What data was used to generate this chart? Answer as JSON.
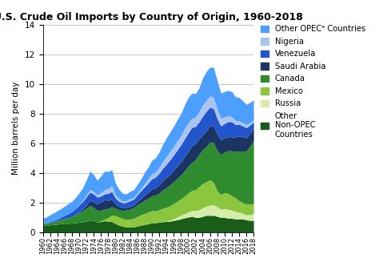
{
  "title": "U.S. Crude Oil Imports by Country of Origin, 1960-2018",
  "ylabel": "Million barrels per day",
  "years": [
    1960,
    1961,
    1962,
    1963,
    1964,
    1965,
    1966,
    1967,
    1968,
    1969,
    1970,
    1971,
    1972,
    1973,
    1974,
    1975,
    1976,
    1977,
    1978,
    1979,
    1980,
    1981,
    1982,
    1983,
    1984,
    1985,
    1986,
    1987,
    1988,
    1989,
    1990,
    1991,
    1992,
    1993,
    1994,
    1995,
    1996,
    1997,
    1998,
    1999,
    2000,
    2001,
    2002,
    2003,
    2004,
    2005,
    2006,
    2007,
    2008,
    2009,
    2010,
    2011,
    2012,
    2013,
    2014,
    2015,
    2016,
    2017,
    2018
  ],
  "series": {
    "Other Non-OPEC Countries": [
      0.45,
      0.45,
      0.48,
      0.5,
      0.52,
      0.55,
      0.58,
      0.58,
      0.6,
      0.62,
      0.65,
      0.68,
      0.72,
      0.8,
      0.75,
      0.65,
      0.7,
      0.75,
      0.72,
      0.7,
      0.55,
      0.45,
      0.38,
      0.34,
      0.34,
      0.34,
      0.4,
      0.45,
      0.5,
      0.55,
      0.62,
      0.62,
      0.65,
      0.68,
      0.72,
      0.72,
      0.78,
      0.82,
      0.88,
      0.95,
      1.0,
      1.05,
      0.98,
      0.98,
      1.05,
      1.12,
      1.12,
      1.12,
      1.05,
      0.98,
      0.98,
      0.92,
      0.92,
      0.88,
      0.88,
      0.88,
      0.82,
      0.78,
      0.78
    ],
    "Russia": [
      0.0,
      0.0,
      0.0,
      0.0,
      0.0,
      0.0,
      0.0,
      0.0,
      0.0,
      0.0,
      0.0,
      0.0,
      0.0,
      0.0,
      0.0,
      0.0,
      0.0,
      0.0,
      0.0,
      0.0,
      0.0,
      0.0,
      0.0,
      0.0,
      0.0,
      0.0,
      0.0,
      0.0,
      0.0,
      0.0,
      0.0,
      0.0,
      0.0,
      0.0,
      0.03,
      0.06,
      0.12,
      0.18,
      0.24,
      0.28,
      0.34,
      0.4,
      0.46,
      0.52,
      0.58,
      0.62,
      0.68,
      0.72,
      0.65,
      0.55,
      0.6,
      0.6,
      0.55,
      0.5,
      0.45,
      0.38,
      0.33,
      0.38,
      0.45
    ],
    "Mexico": [
      0.0,
      0.0,
      0.0,
      0.0,
      0.0,
      0.0,
      0.0,
      0.0,
      0.0,
      0.0,
      0.0,
      0.0,
      0.0,
      0.0,
      0.0,
      0.0,
      0.05,
      0.12,
      0.25,
      0.45,
      0.55,
      0.55,
      0.52,
      0.52,
      0.52,
      0.58,
      0.65,
      0.7,
      0.75,
      0.78,
      0.82,
      0.8,
      0.85,
      0.92,
      0.92,
      0.98,
      1.02,
      1.08,
      1.12,
      1.18,
      1.28,
      1.35,
      1.4,
      1.55,
      1.65,
      1.65,
      1.72,
      1.5,
      1.08,
      0.98,
      1.08,
      1.08,
      0.98,
      0.92,
      0.78,
      0.72,
      0.72,
      0.72,
      0.68
    ],
    "Canada": [
      0.12,
      0.14,
      0.16,
      0.18,
      0.22,
      0.28,
      0.32,
      0.38,
      0.44,
      0.55,
      0.65,
      0.76,
      0.88,
      0.98,
      0.88,
      0.78,
      0.72,
      0.68,
      0.62,
      0.55,
      0.5,
      0.5,
      0.55,
      0.62,
      0.68,
      0.72,
      0.78,
      0.82,
      0.88,
      0.95,
      1.0,
      1.05,
      1.12,
      1.22,
      1.32,
      1.42,
      1.48,
      1.55,
      1.6,
      1.72,
      1.8,
      1.9,
      2.02,
      2.18,
      2.28,
      2.38,
      2.55,
      2.68,
      2.72,
      2.72,
      2.72,
      2.88,
      3.02,
      3.15,
      3.35,
      3.48,
      3.58,
      3.9,
      4.22
    ],
    "Saudi Arabia": [
      0.0,
      0.0,
      0.0,
      0.0,
      0.0,
      0.0,
      0.0,
      0.0,
      0.0,
      0.0,
      0.06,
      0.12,
      0.22,
      0.34,
      0.4,
      0.46,
      0.55,
      0.62,
      0.55,
      0.5,
      0.28,
      0.22,
      0.17,
      0.17,
      0.17,
      0.17,
      0.22,
      0.28,
      0.34,
      0.4,
      0.46,
      0.5,
      0.55,
      0.62,
      0.68,
      0.72,
      0.78,
      0.82,
      0.88,
      0.95,
      1.0,
      1.1,
      1.1,
      1.05,
      1.0,
      1.05,
      1.1,
      1.1,
      1.1,
      1.0,
      0.95,
      0.95,
      0.95,
      0.95,
      1.0,
      0.95,
      0.9,
      0.85,
      0.85
    ],
    "Venezuela": [
      0.0,
      0.02,
      0.06,
      0.09,
      0.12,
      0.17,
      0.22,
      0.27,
      0.34,
      0.4,
      0.46,
      0.5,
      0.56,
      0.57,
      0.52,
      0.46,
      0.4,
      0.4,
      0.46,
      0.52,
      0.4,
      0.35,
      0.34,
      0.34,
      0.4,
      0.4,
      0.46,
      0.52,
      0.57,
      0.62,
      0.68,
      0.72,
      0.78,
      0.85,
      0.9,
      0.96,
      1.02,
      1.08,
      1.15,
      1.2,
      1.25,
      1.25,
      1.15,
      1.15,
      1.25,
      1.32,
      1.25,
      1.2,
      1.05,
      0.92,
      0.98,
      1.02,
      1.02,
      0.85,
      0.8,
      0.75,
      0.68,
      0.58,
      0.45
    ],
    "Nigeria": [
      0.0,
      0.0,
      0.0,
      0.0,
      0.0,
      0.0,
      0.0,
      0.0,
      0.0,
      0.0,
      0.02,
      0.06,
      0.12,
      0.17,
      0.17,
      0.17,
      0.22,
      0.28,
      0.34,
      0.4,
      0.22,
      0.17,
      0.12,
      0.12,
      0.12,
      0.12,
      0.12,
      0.17,
      0.22,
      0.28,
      0.34,
      0.34,
      0.4,
      0.46,
      0.52,
      0.57,
      0.57,
      0.62,
      0.62,
      0.68,
      0.68,
      0.62,
      0.62,
      0.68,
      0.75,
      0.75,
      0.75,
      0.75,
      0.62,
      0.52,
      0.46,
      0.4,
      0.34,
      0.28,
      0.22,
      0.22,
      0.22,
      0.17,
      0.12
    ],
    "Other OPEC Countries": [
      0.34,
      0.4,
      0.46,
      0.52,
      0.57,
      0.57,
      0.62,
      0.68,
      0.68,
      0.75,
      0.8,
      0.86,
      1.02,
      1.25,
      1.14,
      0.97,
      1.14,
      1.25,
      1.14,
      1.08,
      0.8,
      0.62,
      0.52,
      0.46,
      0.52,
      0.52,
      0.57,
      0.62,
      0.75,
      0.8,
      0.91,
      0.97,
      1.02,
      1.14,
      1.25,
      1.31,
      1.36,
      1.42,
      1.48,
      1.6,
      1.7,
      1.7,
      1.6,
      1.6,
      1.82,
      1.94,
      1.94,
      2.05,
      1.94,
      1.7,
      1.7,
      1.7,
      1.7,
      1.6,
      1.6,
      1.48,
      1.36,
      1.36,
      1.36
    ]
  },
  "colors": {
    "Other Non-OPEC Countries": "#1a5c1a",
    "Russia": "#d4edaa",
    "Mexico": "#8cc63f",
    "Canada": "#2e8b2e",
    "Saudi Arabia": "#1c3461",
    "Venezuela": "#2255cc",
    "Nigeria": "#aac4f0",
    "Other OPEC Countries": "#4d9fff"
  },
  "legend_labels": {
    "Other OPEC Countries": "Other OPECᵃ Countries",
    "Nigeria": "Nigeria",
    "Venezuela": "Venezuela",
    "Saudi Arabia": "Saudi Arabia",
    "Canada": "Canada",
    "Mexico": "Mexico",
    "Russia": "Russia",
    "Other Non-OPEC Countries": "Other\nNon-OPEC\nCountries"
  },
  "ylim": [
    0,
    14
  ],
  "yticks": [
    0,
    2,
    4,
    6,
    8,
    10,
    12,
    14
  ],
  "background_color": "#ffffff",
  "title_fontsize": 9.0,
  "axis_fontsize": 7.5,
  "legend_fontsize": 7.2
}
